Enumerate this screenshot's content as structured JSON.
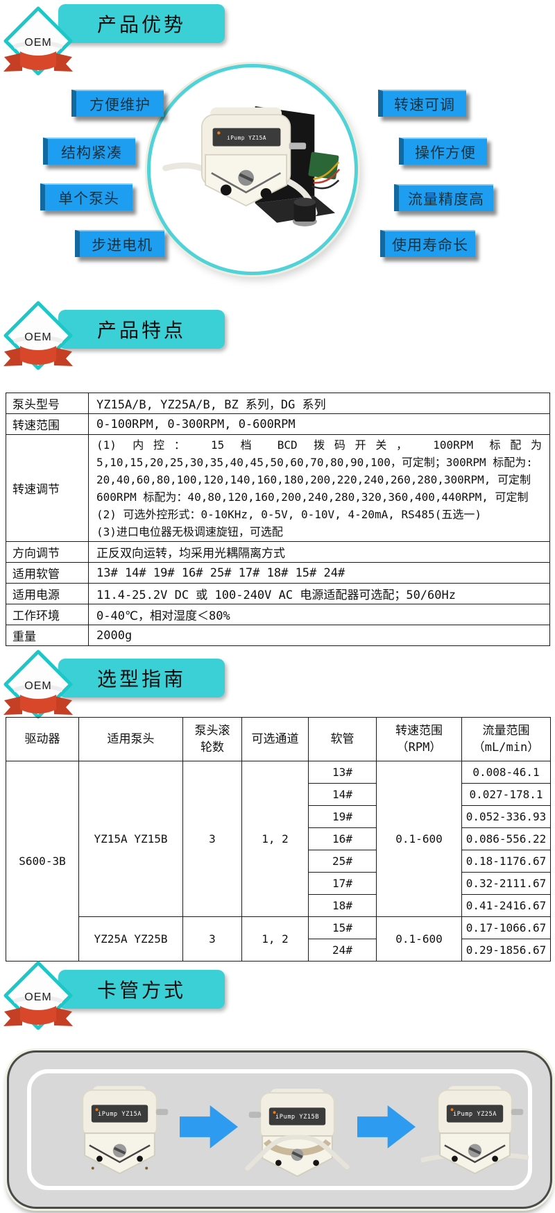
{
  "badge_text": "OEM",
  "colors": {
    "teal": "#3bcfd6",
    "ribbon_red": "#d9472b",
    "label_blue": "#1d9ef1",
    "arrow_blue": "#2d9cf0",
    "table_border": "#1a1a1a"
  },
  "sections": [
    {
      "title": "产品优势"
    },
    {
      "title": "产品特点"
    },
    {
      "title": "选型指南"
    },
    {
      "title": "卡管方式"
    }
  ],
  "advantages": {
    "left_labels": [
      "方便维护",
      "结构紧凑",
      "单个泵头",
      "步进电机"
    ],
    "right_labels": [
      "转速可调",
      "操作方便",
      "流量精度高",
      "使用寿命长"
    ],
    "hero_pump_label": "iPump YZ15A"
  },
  "features_table": {
    "rows": [
      {
        "label": "泵头型号",
        "value": "YZ15A/B, YZ25A/B, BZ 系列，DG 系列"
      },
      {
        "label": "转速范围",
        "value": "0-100RPM, 0-300RPM, 0-600RPM"
      },
      {
        "label": "转速调节",
        "lines": [
          "(1) 内控： 15 档 BCD 拨码开关， 100RPM 标配为",
          "5,10,15,20,25,30,35,40,45,50,60,70,80,90,100，可定制；300RPM 标配为:",
          "20,40,60,80,100,120,140,160,180,200,220,240,260,280,300RPM, 可定制",
          "600RPM 标配为：40,80,120,160,200,240,280,320,360,400,440RPM, 可定制",
          "(2) 可选外控形式：0-10KHz, 0-5V, 0-10V, 4-20mA, RS485(五选一)",
          "(3)进口电位器无极调速旋钮，可选配"
        ]
      },
      {
        "label": "方向调节",
        "value": "正反双向运转，均采用光耦隔离方式"
      },
      {
        "label": "适用软管",
        "value": "13# 14# 19# 16# 25# 17# 18# 15# 24#"
      },
      {
        "label": "适用电源",
        "value": "11.4-25.2V DC 或 100-240V AC 电源适配器可选配；50/60Hz"
      },
      {
        "label": "工作环境",
        "value": "0-40℃，相对湿度＜80%"
      },
      {
        "label": "重量",
        "value": "2000g"
      }
    ]
  },
  "selection_table": {
    "headers": [
      "驱动器",
      "适用泵头",
      "泵头滚\n轮数",
      "可选通道",
      "软管",
      "转速范围\n（RPM）",
      "流量范围\n（mL/min）"
    ],
    "driver": "S600-3B",
    "groups": [
      {
        "pump_head": "YZ15A  YZ15B",
        "rollers": "3",
        "channels": "1, 2",
        "rpm": "0.1-600",
        "tubes": [
          {
            "tube": "13#",
            "flow": "0.008-46.1"
          },
          {
            "tube": "14#",
            "flow": "0.027-178.1"
          },
          {
            "tube": "19#",
            "flow": "0.052-336.93"
          },
          {
            "tube": "16#",
            "flow": "0.086-556.22"
          },
          {
            "tube": "25#",
            "flow": "0.18-1176.67"
          },
          {
            "tube": "17#",
            "flow": "0.32-2111.67"
          },
          {
            "tube": "18#",
            "flow": "0.41-2416.67"
          }
        ]
      },
      {
        "pump_head": "YZ25A  YZ25B",
        "rollers": "3",
        "channels": "1, 2",
        "rpm": "0.1-600",
        "tubes": [
          {
            "tube": "15#",
            "flow": "0.17-1066.67"
          },
          {
            "tube": "24#",
            "flow": "0.29-1856.67"
          }
        ]
      }
    ]
  },
  "clamping": {
    "pump_labels": [
      "iPump YZ15A",
      "iPump YZ15B",
      "iPump YZ25A"
    ]
  }
}
